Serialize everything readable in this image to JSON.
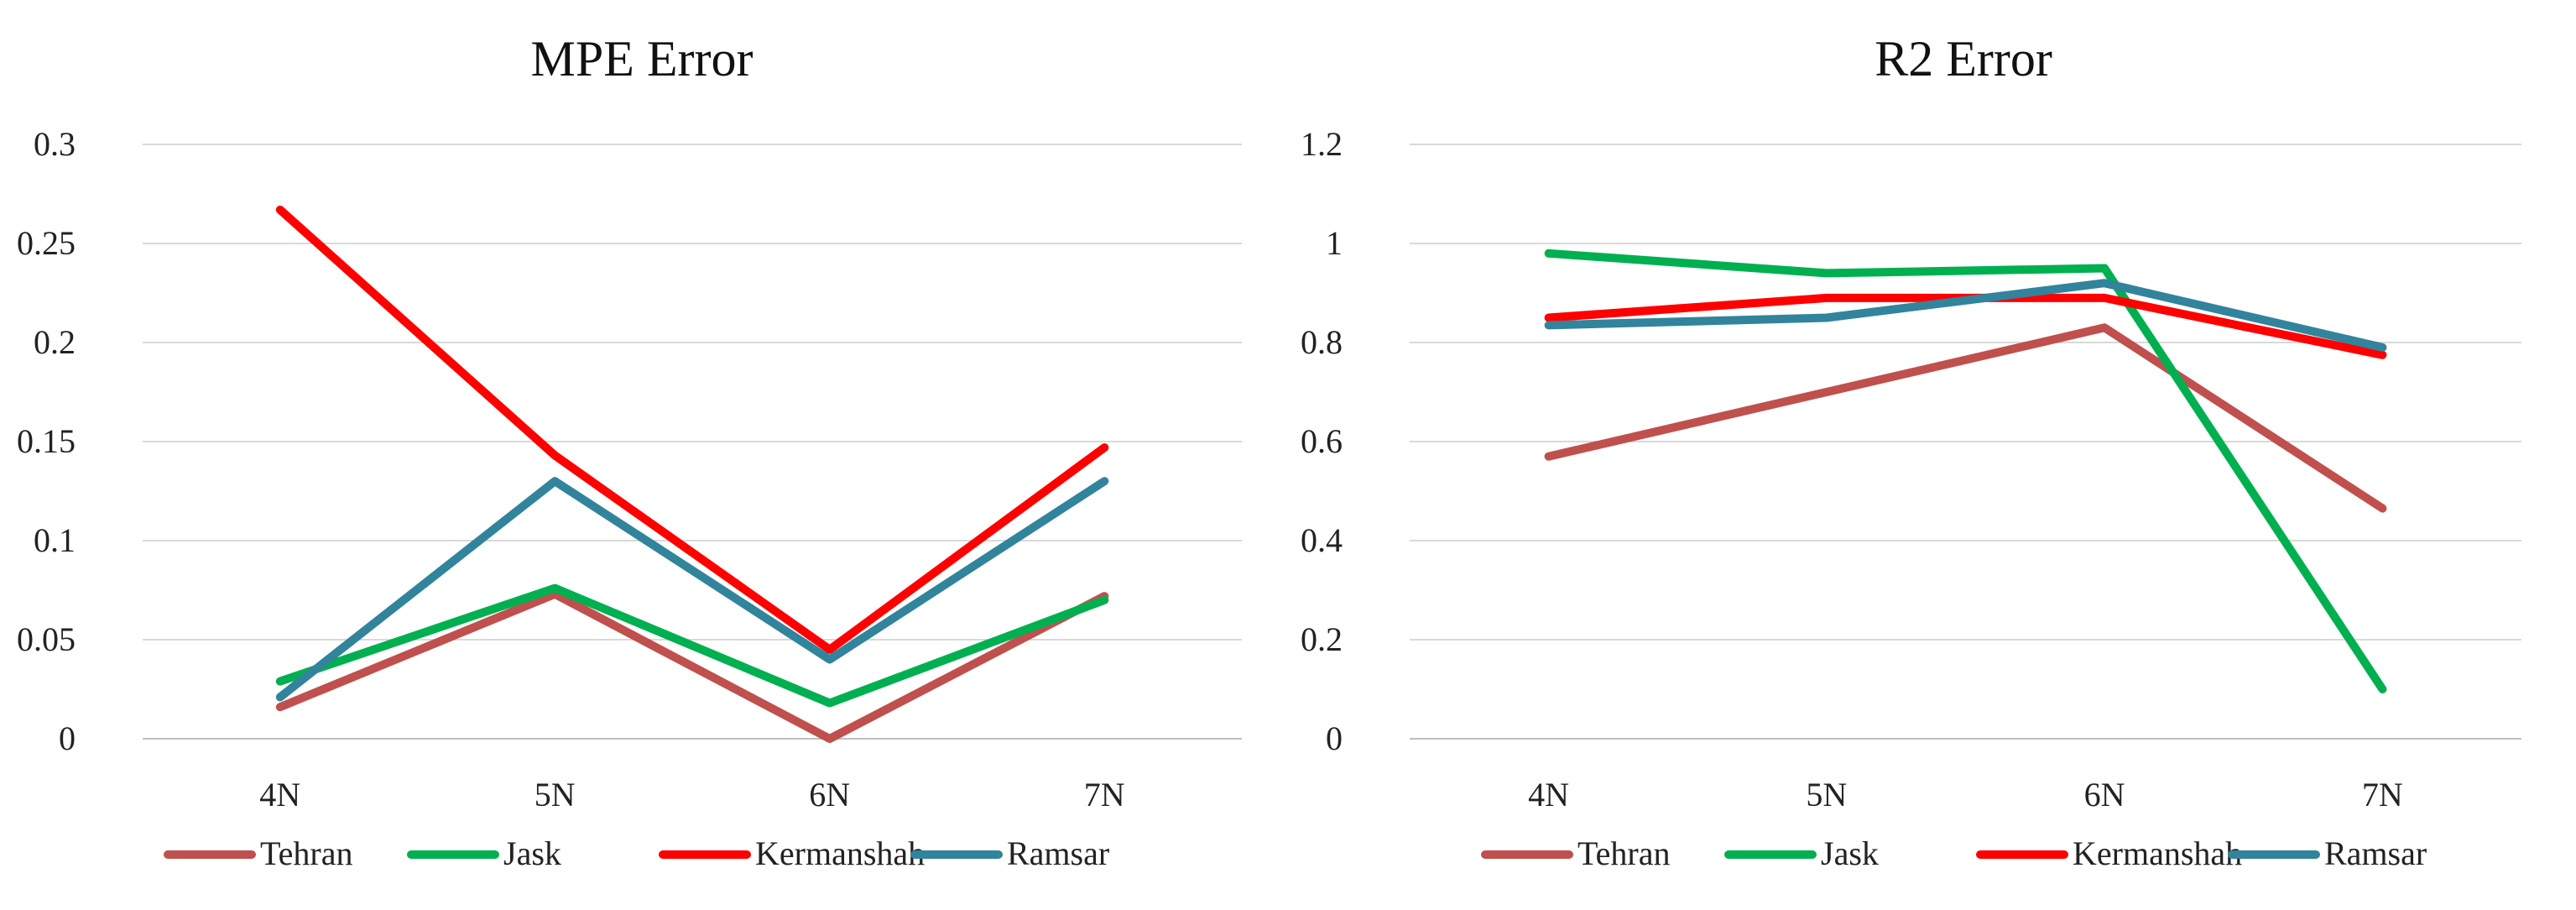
{
  "chart_data": [
    {
      "type": "line",
      "title": "MPE Error",
      "xlabel": "",
      "ylabel": "",
      "categories": [
        "4N",
        "5N",
        "6N",
        "7N"
      ],
      "ylim": [
        0,
        0.3
      ],
      "yticks": [
        0,
        0.05,
        0.1,
        0.15,
        0.2,
        0.25,
        0.3
      ],
      "ytick_labels": [
        "0",
        "0.05",
        "0.1",
        "0.15",
        "0.2",
        "0.25",
        "0.3"
      ],
      "grid": true,
      "legend_position": "bottom",
      "series": [
        {
          "name": "Tehran",
          "color": "#c0504d",
          "values": [
            0.016,
            0.073,
            0.0,
            0.072
          ]
        },
        {
          "name": "Jask",
          "color": "#00b050",
          "values": [
            0.029,
            0.076,
            0.018,
            0.07
          ]
        },
        {
          "name": "Kermanshah",
          "color": "#ff0000",
          "values": [
            0.267,
            0.143,
            0.045,
            0.147
          ]
        },
        {
          "name": "Ramsar",
          "color": "#31849b",
          "values": [
            0.021,
            0.13,
            0.04,
            0.13
          ]
        }
      ]
    },
    {
      "type": "line",
      "title": "R2 Error",
      "xlabel": "",
      "ylabel": "",
      "categories": [
        "4N",
        "5N",
        "6N",
        "7N"
      ],
      "ylim": [
        0,
        1.2
      ],
      "yticks": [
        0,
        0.2,
        0.4,
        0.6,
        0.8,
        1.0,
        1.2
      ],
      "ytick_labels": [
        "0",
        "0.2",
        "0.4",
        "0.6",
        "0.8",
        "1",
        "1.2"
      ],
      "grid": true,
      "legend_position": "bottom",
      "series": [
        {
          "name": "Tehran",
          "color": "#c0504d",
          "values": [
            0.57,
            0.7,
            0.83,
            0.465
          ]
        },
        {
          "name": "Jask",
          "color": "#00b050",
          "values": [
            0.98,
            0.94,
            0.95,
            0.1
          ]
        },
        {
          "name": "Kermanshah",
          "color": "#ff0000",
          "values": [
            0.85,
            0.89,
            0.89,
            0.775
          ]
        },
        {
          "name": "Ramsar",
          "color": "#31849b",
          "values": [
            0.835,
            0.85,
            0.92,
            0.79
          ]
        }
      ]
    }
  ]
}
